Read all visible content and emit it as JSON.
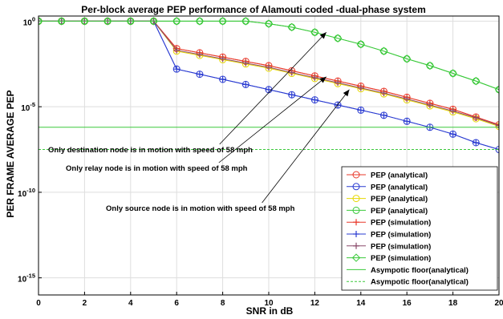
{
  "chart_data": {
    "type": "line",
    "title": "Per-block average PEP performance of Alamouti coded -dual-phase system",
    "xlabel": "SNR in dB",
    "ylabel": "PER FRAME AVERAGE PEP",
    "log_y": true,
    "xlim": [
      0,
      20
    ],
    "ylim_log10": [
      -16,
      0.3
    ],
    "x_ticks": [
      0,
      2,
      4,
      6,
      8,
      10,
      12,
      14,
      16,
      18,
      20
    ],
    "x_tick_labels": [
      "0",
      "2",
      "4",
      "6",
      "8",
      "10",
      "12",
      "14",
      "16",
      "18",
      "20"
    ],
    "y_ticks_log10": [
      0,
      -5,
      -10,
      -15
    ],
    "y_tick_labels": [
      {
        "base": "10",
        "exp": "0"
      },
      {
        "base": "10",
        "exp": "-5"
      },
      {
        "base": "10",
        "exp": "-10"
      },
      {
        "base": "10",
        "exp": "-15"
      }
    ],
    "grid": true,
    "legend_position": "lower-right",
    "x": [
      0,
      1,
      2,
      3,
      4,
      5,
      6,
      7,
      8,
      9,
      10,
      11,
      12,
      13,
      14,
      15,
      16,
      17,
      18,
      19,
      20
    ],
    "series": [
      {
        "name": "PEP (analytical)",
        "color": "#e8382a",
        "marker": "circle",
        "y_log10": [
          0,
          0,
          0,
          0,
          0,
          0,
          -1.6,
          -1.85,
          -2.1,
          -2.35,
          -2.6,
          -2.9,
          -3.2,
          -3.5,
          -3.8,
          -4.1,
          -4.45,
          -4.8,
          -5.15,
          -5.6,
          -6.05
        ]
      },
      {
        "name": "PEP (analytical)",
        "color": "#2a3bd1",
        "marker": "circle",
        "y_log10": [
          0,
          0,
          0,
          0,
          0,
          0,
          -2.8,
          -3.1,
          -3.4,
          -3.7,
          -4.0,
          -4.3,
          -4.6,
          -4.9,
          -5.2,
          -5.5,
          -5.85,
          -6.2,
          -6.6,
          -7.1,
          -7.5
        ]
      },
      {
        "name": "PEP (analytical)",
        "color": "#e6d800",
        "marker": "circle",
        "y_log10": [
          0,
          0,
          0,
          0,
          0,
          0,
          -1.75,
          -2.0,
          -2.25,
          -2.5,
          -2.75,
          -3.05,
          -3.35,
          -3.65,
          -3.95,
          -4.25,
          -4.6,
          -4.95,
          -5.3,
          -5.7,
          -6.15
        ]
      },
      {
        "name": "PEP (analytical)",
        "color": "#3ac93a",
        "marker": "circle",
        "y_log10": [
          0,
          0,
          0,
          0,
          0,
          0,
          0,
          0,
          0,
          0,
          -0.15,
          -0.35,
          -0.65,
          -1.0,
          -1.35,
          -1.75,
          -2.2,
          -2.6,
          -3.05,
          -3.5,
          -4.0
        ]
      },
      {
        "name": "PEP (simulation)",
        "color": "#e8382a",
        "marker": "plus",
        "y_log10": [
          0,
          0,
          0,
          0,
          0,
          0,
          -1.6,
          -1.85,
          -2.1,
          -2.35,
          -2.6,
          -2.9,
          -3.2,
          -3.5,
          -3.8,
          -4.1,
          -4.45,
          -4.8,
          -5.15,
          -5.6,
          -6.05
        ]
      },
      {
        "name": "PEP (simulation)",
        "color": "#2a3bd1",
        "marker": "plus",
        "y_log10": [
          0,
          0,
          0,
          0,
          0,
          0,
          -2.8,
          -3.1,
          -3.4,
          -3.7,
          -4.0,
          -4.3,
          -4.6,
          -4.9,
          -5.2,
          -5.5,
          -5.85,
          -6.2,
          -6.6,
          -7.1,
          -7.5
        ]
      },
      {
        "name": "PEP (simulation)",
        "color": "#8a4a6a",
        "marker": "plus",
        "y_log10": [
          0,
          0,
          0,
          0,
          0,
          0,
          -1.7,
          -1.95,
          -2.2,
          -2.45,
          -2.7,
          -3.0,
          -3.3,
          -3.6,
          -3.9,
          -4.2,
          -4.55,
          -4.9,
          -5.25,
          -5.65,
          -6.1
        ]
      },
      {
        "name": "PEP (simulation)",
        "color": "#3ac93a",
        "marker": "diamond",
        "y_log10": [
          0,
          0,
          0,
          0,
          0,
          0,
          0,
          0,
          0,
          0,
          -0.15,
          -0.35,
          -0.65,
          -1.0,
          -1.35,
          -1.75,
          -2.2,
          -2.6,
          -3.05,
          -3.5,
          -4.0
        ]
      },
      {
        "name": "Asympotic floor(analytical)",
        "color": "#3ac93a",
        "marker": "none",
        "dash": "solid",
        "y_log10": [
          -6.2,
          -6.2,
          -6.2,
          -6.2,
          -6.2,
          -6.2,
          -6.2,
          -6.2,
          -6.2,
          -6.2,
          -6.2,
          -6.2,
          -6.2,
          -6.2,
          -6.2,
          -6.2,
          -6.2,
          -6.2,
          -6.2,
          -6.2,
          -6.2
        ]
      },
      {
        "name": "Asympotic floor(analytical)",
        "color": "#3ac93a",
        "marker": "none",
        "dash": "dashed",
        "y_log10": [
          -7.5,
          -7.5,
          -7.5,
          -7.5,
          -7.5,
          -7.5,
          -7.5,
          -7.5,
          -7.5,
          -7.5,
          -7.5,
          -7.5,
          -7.5,
          -7.5,
          -7.5,
          -7.5,
          -7.5,
          -7.5,
          -7.5,
          -7.5,
          -7.5
        ]
      }
    ],
    "annotations": [
      {
        "text": "Only destination node is in motion with speed  of 58 mph",
        "arrow_to": [
          12.5,
          -0.65
        ]
      },
      {
        "text": "Only relay node is in motion with speed  of 58 mph",
        "arrow_to": [
          12.5,
          -3.25
        ]
      },
      {
        "text": "Only source node is in motion with speed  of 58 mph",
        "arrow_to": [
          13.5,
          -4.0
        ]
      }
    ]
  }
}
